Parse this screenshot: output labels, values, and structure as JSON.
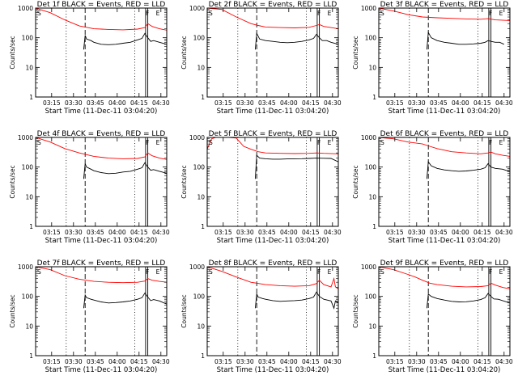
{
  "colors": {
    "events": "#000000",
    "lld": "#ff0000",
    "frame": "#000000"
  },
  "chart_data": [
    {
      "type": "line",
      "title": "Det 1f BLACK = Events, RED = LLD",
      "xlabel": "Start Time (11-Dec-11 03:04:20)",
      "ylabel": "Counts/sec",
      "x_ticks": [
        "03:15",
        "03:30",
        "03:45",
        "04:00",
        "04:15",
        "04:30"
      ],
      "y_ticks": [
        "1",
        "10",
        "100",
        "1000"
      ],
      "ylim": [
        1,
        1000
      ],
      "yscale": "log",
      "xlim_minutes": [
        0,
        90
      ],
      "markers": {
        "S": {
          "t": 0
        },
        "F": {
          "t": 75
        },
        "E": {
          "t": 82
        }
      },
      "dotted_lines": [
        21,
        68,
        93
      ],
      "dashed_lines": [
        34
      ],
      "solid_lines": [
        75.5,
        77
      ],
      "series": [
        {
          "name": "LLD",
          "color": "#ff0000",
          "t": [
            0,
            10,
            20,
            30,
            40,
            50,
            60,
            70,
            75,
            77,
            80,
            85,
            90,
            95
          ],
          "values": [
            1000,
            700,
            400,
            250,
            200,
            190,
            185,
            195,
            220,
            300,
            240,
            200,
            180,
            150
          ]
        },
        {
          "name": "Events",
          "color": "#000000",
          "t": [
            33,
            34,
            35,
            38,
            40,
            45,
            50,
            55,
            60,
            65,
            70,
            73,
            75,
            77,
            79,
            81,
            85,
            90
          ],
          "values": [
            40,
            120,
            90,
            80,
            70,
            60,
            58,
            60,
            65,
            70,
            85,
            95,
            140,
            100,
            75,
            80,
            70,
            60
          ]
        }
      ]
    },
    {
      "type": "line",
      "title": "Det 2f BLACK = Events, RED = LLD",
      "xlabel": "Start Time (11-Dec-11 03:04:20)",
      "ylabel": "Counts/sec",
      "x_ticks": [
        "03:15",
        "03:30",
        "03:45",
        "04:00",
        "04:15",
        "04:30"
      ],
      "y_ticks": [
        "1",
        "10",
        "100",
        "1000"
      ],
      "ylim": [
        1,
        1000
      ],
      "yscale": "log",
      "xlim_minutes": [
        0,
        90
      ],
      "markers": {
        "S": {
          "t": 0
        },
        "F": {
          "t": 75
        },
        "E": {
          "t": 82
        }
      },
      "dotted_lines": [
        21,
        68,
        93
      ],
      "dashed_lines": [
        34
      ],
      "solid_lines": [
        75.5,
        77
      ],
      "series": [
        {
          "name": "LLD",
          "color": "#ff0000",
          "t": [
            0,
            10,
            20,
            30,
            35,
            40,
            50,
            60,
            70,
            75,
            77,
            80,
            85,
            90,
            95
          ],
          "values": [
            1000,
            900,
            500,
            300,
            260,
            230,
            220,
            215,
            225,
            260,
            280,
            240,
            220,
            200,
            180
          ]
        },
        {
          "name": "Events",
          "color": "#000000",
          "t": [
            33,
            34,
            36,
            40,
            45,
            50,
            55,
            60,
            65,
            70,
            73,
            75,
            77,
            79,
            82,
            85,
            90
          ],
          "values": [
            40,
            140,
            90,
            80,
            75,
            70,
            68,
            70,
            75,
            85,
            95,
            130,
            100,
            80,
            80,
            70,
            60
          ]
        }
      ]
    },
    {
      "type": "line",
      "title": "Det 3f BLACK = Events, RED = LLD",
      "xlabel": "Start Time (11-Dec-11 03:04:20)",
      "ylabel": "Counts/sec",
      "x_ticks": [
        "03:15",
        "03:30",
        "03:45",
        "04:00",
        "04:15",
        "04:30"
      ],
      "y_ticks": [
        "1",
        "10",
        "100",
        "1000"
      ],
      "ylim": [
        1,
        1000
      ],
      "yscale": "log",
      "xlim_minutes": [
        0,
        90
      ],
      "markers": {
        "S": {
          "t": 0
        },
        "F": {
          "t": 75
        },
        "E": {
          "t": 82
        }
      },
      "dotted_lines": [
        21,
        68,
        93
      ],
      "dashed_lines": [
        34
      ],
      "solid_lines": [
        75.5,
        77
      ],
      "series": [
        {
          "name": "LLD",
          "color": "#ff0000",
          "t": [
            0,
            10,
            20,
            30,
            40,
            50,
            60,
            70,
            75,
            80,
            90,
            100
          ],
          "values": [
            1000,
            800,
            600,
            500,
            470,
            450,
            430,
            420,
            440,
            400,
            380,
            350
          ]
        },
        {
          "name": "Events",
          "color": "#000000",
          "t": [
            33,
            34,
            36,
            40,
            45,
            50,
            55,
            60,
            65,
            70,
            73,
            75,
            77,
            80,
            83,
            86
          ],
          "values": [
            40,
            150,
            100,
            80,
            70,
            65,
            60,
            60,
            62,
            65,
            70,
            80,
            75,
            70,
            70,
            60
          ]
        }
      ]
    },
    {
      "type": "line",
      "title": "Det 4f BLACK = Events, RED = LLD",
      "xlabel": "Start Time (11-Dec-11 03:04:20)",
      "ylabel": "Counts/sec",
      "x_ticks": [
        "03:15",
        "03:30",
        "03:45",
        "04:00",
        "04:15",
        "04:30"
      ],
      "y_ticks": [
        "1",
        "10",
        "100",
        "1000"
      ],
      "ylim": [
        1,
        1000
      ],
      "yscale": "log",
      "xlim_minutes": [
        0,
        90
      ],
      "markers": {
        "S": {
          "t": 0
        },
        "F": {
          "t": 75
        },
        "E": {
          "t": 82
        }
      },
      "dotted_lines": [
        21,
        68,
        93
      ],
      "dashed_lines": [
        34
      ],
      "solid_lines": [
        75.5,
        77
      ],
      "series": [
        {
          "name": "LLD",
          "color": "#ff0000",
          "t": [
            0,
            10,
            20,
            30,
            40,
            50,
            60,
            70,
            75,
            77,
            80,
            85,
            90,
            95
          ],
          "values": [
            1000,
            700,
            420,
            300,
            230,
            200,
            190,
            195,
            220,
            300,
            240,
            200,
            180,
            160
          ]
        },
        {
          "name": "Events",
          "color": "#000000",
          "t": [
            33,
            34,
            35,
            38,
            40,
            45,
            50,
            55,
            60,
            65,
            70,
            73,
            75,
            77,
            79,
            81,
            85,
            90
          ],
          "values": [
            40,
            130,
            100,
            85,
            75,
            65,
            60,
            62,
            68,
            72,
            85,
            95,
            140,
            100,
            78,
            82,
            72,
            62
          ]
        }
      ]
    },
    {
      "type": "line",
      "title": "Det 5f BLACK = Events, RED = LLD",
      "xlabel": "Start Time (11-Dec-11 03:04:20)",
      "ylabel": "Counts/sec",
      "x_ticks": [
        "03:15",
        "03:30",
        "03:45",
        "04:00",
        "04:15",
        "04:30"
      ],
      "y_ticks": [
        "1",
        "10",
        "100",
        "1000"
      ],
      "ylim": [
        1,
        1000
      ],
      "yscale": "log",
      "xlim_minutes": [
        0,
        90
      ],
      "markers": {
        "S": {
          "t": 0
        },
        "F": {
          "t": 75
        },
        "E": {
          "t": 82
        }
      },
      "dotted_lines": [
        21,
        68,
        93
      ],
      "dashed_lines": [
        34
      ],
      "solid_lines": [
        75.5,
        77
      ],
      "series": [
        {
          "name": "LLD",
          "color": "#ff0000",
          "t": [
            0,
            3,
            6,
            9,
            15,
            20,
            25,
            30,
            35,
            40,
            50,
            60,
            70,
            75,
            80,
            90,
            100
          ],
          "values": [
            400,
            900,
            1000,
            1000,
            1000,
            950,
            500,
            400,
            330,
            300,
            290,
            285,
            290,
            300,
            290,
            280,
            270
          ]
        },
        {
          "name": "Events",
          "color": "#000000",
          "t": [
            33,
            34,
            36,
            40,
            45,
            50,
            55,
            60,
            65,
            70,
            75,
            80,
            85,
            90
          ],
          "values": [
            40,
            250,
            200,
            190,
            185,
            185,
            188,
            190,
            192,
            195,
            200,
            198,
            196,
            150
          ]
        }
      ]
    },
    {
      "type": "line",
      "title": "Det 6f BLACK = Events, RED = LLD",
      "xlabel": "Start Time (11-Dec-11 03:04:20)",
      "ylabel": "Counts/sec",
      "x_ticks": [
        "03:15",
        "03:30",
        "03:45",
        "04:00",
        "04:15",
        "04:30"
      ],
      "y_ticks": [
        "1",
        "10",
        "100",
        "1000"
      ],
      "ylim": [
        1,
        1000
      ],
      "yscale": "log",
      "xlim_minutes": [
        0,
        90
      ],
      "markers": {
        "S": {
          "t": 0
        },
        "F": {
          "t": 75
        },
        "E": {
          "t": 82
        }
      },
      "dotted_lines": [
        21,
        68,
        93
      ],
      "dashed_lines": [
        34
      ],
      "solid_lines": [
        75.5,
        77
      ],
      "series": [
        {
          "name": "LLD",
          "color": "#ff0000",
          "t": [
            0,
            10,
            20,
            30,
            35,
            40,
            50,
            60,
            70,
            75,
            77,
            80,
            85,
            90,
            95
          ],
          "values": [
            1000,
            900,
            700,
            600,
            500,
            420,
            330,
            300,
            280,
            300,
            320,
            280,
            250,
            230,
            210
          ]
        },
        {
          "name": "Events",
          "color": "#000000",
          "t": [
            33,
            34,
            36,
            40,
            45,
            50,
            55,
            60,
            65,
            70,
            73,
            75,
            77,
            80,
            85,
            90
          ],
          "values": [
            40,
            150,
            110,
            90,
            80,
            75,
            72,
            74,
            78,
            85,
            95,
            130,
            100,
            90,
            85,
            70
          ]
        }
      ]
    },
    {
      "type": "line",
      "title": "Det 7f BLACK = Events, RED = LLD",
      "xlabel": "Start Time (11-Dec-11 03:04:20)",
      "ylabel": "Counts/sec",
      "x_ticks": [
        "03:15",
        "03:30",
        "03:45",
        "04:00",
        "04:15",
        "04:30"
      ],
      "y_ticks": [
        "1",
        "10",
        "100",
        "1000"
      ],
      "ylim": [
        1,
        1000
      ],
      "yscale": "log",
      "xlim_minutes": [
        0,
        90
      ],
      "markers": {
        "S": {
          "t": 0
        },
        "F": {
          "t": 75
        },
        "E": {
          "t": 82
        }
      },
      "dotted_lines": [
        21,
        68,
        93
      ],
      "dashed_lines": [
        34
      ],
      "solid_lines": [
        75.5,
        77
      ],
      "series": [
        {
          "name": "LLD",
          "color": "#ff0000",
          "t": [
            0,
            10,
            20,
            30,
            40,
            50,
            60,
            70,
            75,
            77,
            80,
            85,
            90,
            95
          ],
          "values": [
            1000,
            800,
            500,
            380,
            320,
            300,
            290,
            300,
            330,
            400,
            350,
            320,
            300,
            280
          ]
        },
        {
          "name": "Events",
          "color": "#000000",
          "t": [
            33,
            34,
            35,
            38,
            40,
            45,
            50,
            55,
            60,
            65,
            70,
            73,
            75,
            77,
            79,
            81,
            85,
            90
          ],
          "values": [
            40,
            110,
            90,
            80,
            75,
            65,
            60,
            62,
            65,
            70,
            80,
            90,
            130,
            95,
            72,
            78,
            70,
            55
          ]
        }
      ]
    },
    {
      "type": "line",
      "title": "Det 8f BLACK = Events, RED = LLD",
      "xlabel": "Start Time (11-Dec-11 03:04:20)",
      "ylabel": "Counts/sec",
      "x_ticks": [
        "03:15",
        "03:30",
        "03:45",
        "04:00",
        "04:15",
        "04:30"
      ],
      "y_ticks": [
        "1",
        "10",
        "100",
        "1000"
      ],
      "ylim": [
        1,
        1000
      ],
      "yscale": "log",
      "xlim_minutes": [
        0,
        90
      ],
      "markers": {
        "S": {
          "t": 0
        },
        "F": {
          "t": 75
        },
        "E": {
          "t": 82
        }
      },
      "dotted_lines": [
        21,
        68,
        93
      ],
      "dashed_lines": [
        34
      ],
      "solid_lines": [
        75.5,
        77
      ],
      "series": [
        {
          "name": "LLD",
          "color": "#ff0000",
          "t": [
            0,
            10,
            20,
            30,
            40,
            50,
            60,
            70,
            75,
            77,
            80,
            85,
            87,
            88,
            90,
            95
          ],
          "values": [
            1000,
            700,
            450,
            300,
            250,
            230,
            220,
            230,
            270,
            350,
            250,
            210,
            400,
            210,
            180,
            150
          ]
        },
        {
          "name": "Events",
          "color": "#000000",
          "t": [
            33,
            34,
            35,
            38,
            40,
            45,
            50,
            55,
            60,
            65,
            70,
            73,
            75,
            77,
            80,
            85,
            87,
            88,
            90
          ],
          "values": [
            40,
            120,
            95,
            85,
            80,
            72,
            68,
            70,
            72,
            75,
            85,
            95,
            140,
            100,
            80,
            70,
            40,
            70,
            60
          ]
        }
      ]
    },
    {
      "type": "line",
      "title": "Det 9f BLACK = Events, RED = LLD",
      "xlabel": "Start Time (11-Dec-11 03:04:20)",
      "ylabel": "Counts/sec",
      "x_ticks": [
        "03:15",
        "03:30",
        "03:45",
        "04:00",
        "04:15",
        "04:30"
      ],
      "y_ticks": [
        "1",
        "10",
        "100",
        "1000"
      ],
      "ylim": [
        1,
        1000
      ],
      "yscale": "log",
      "xlim_minutes": [
        0,
        90
      ],
      "markers": {
        "S": {
          "t": 0
        },
        "F": {
          "t": 75
        },
        "E": {
          "t": 82
        }
      },
      "dotted_lines": [
        21,
        68,
        93
      ],
      "dashed_lines": [
        34
      ],
      "solid_lines": [
        75.5,
        77
      ],
      "series": [
        {
          "name": "LLD",
          "color": "#ff0000",
          "t": [
            0,
            10,
            20,
            25,
            30,
            35,
            40,
            50,
            60,
            70,
            75,
            77,
            80,
            85,
            90,
            95
          ],
          "values": [
            1000,
            800,
            550,
            450,
            350,
            280,
            250,
            220,
            210,
            215,
            230,
            280,
            240,
            200,
            180,
            160
          ]
        },
        {
          "name": "Events",
          "color": "#000000",
          "t": [
            33,
            34,
            36,
            40,
            45,
            50,
            55,
            60,
            65,
            70,
            73,
            75,
            77,
            79,
            82,
            85,
            90
          ],
          "values": [
            40,
            120,
            100,
            85,
            75,
            68,
            65,
            66,
            70,
            78,
            90,
            125,
            100,
            82,
            80,
            72,
            60
          ]
        }
      ]
    }
  ]
}
